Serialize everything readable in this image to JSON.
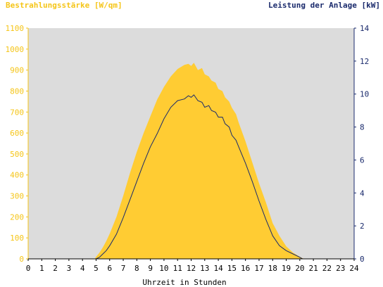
{
  "chart_data": {
    "type": "area",
    "left_axis_title": "Bestrahlungsstärke [W/qm]",
    "right_axis_title": "Leistung der Anlage [kW]",
    "xlabel": "Uhrzeit in Stunden",
    "x_ticks": [
      "0",
      "1",
      "2",
      "3",
      "4",
      "5",
      "6",
      "7",
      "8",
      "9",
      "10",
      "11",
      "12",
      "13",
      "14",
      "15",
      "16",
      "17",
      "18",
      "19",
      "20",
      "21",
      "22",
      "23",
      "24"
    ],
    "y_left_ticks": [
      "0",
      "100",
      "200",
      "300",
      "400",
      "500",
      "600",
      "700",
      "800",
      "900",
      "1000",
      "1100"
    ],
    "y_right_ticks": [
      "0",
      "2",
      "4",
      "6",
      "8",
      "10",
      "12",
      "14"
    ],
    "xlim": [
      0,
      24
    ],
    "ylim_left": [
      0,
      1100
    ],
    "ylim_right": [
      0,
      14
    ],
    "grid": false,
    "colors": {
      "plot_background": "#dcdcdc",
      "left_axis": "#f5c518",
      "right_axis": "#1a2a6c",
      "irradiance_fill": "#ffcc33"
    },
    "series": [
      {
        "axis": "left",
        "kind": "area",
        "x": [
          0,
          4.9,
          5.0,
          5.25,
          5.5,
          5.75,
          6,
          6.5,
          7,
          7.5,
          8,
          8.5,
          9,
          9.5,
          10,
          10.5,
          11,
          11.5,
          11.8,
          12,
          12.2,
          12.5,
          12.8,
          13,
          13.3,
          13.5,
          13.8,
          14,
          14.3,
          14.5,
          14.8,
          15,
          15.3,
          15.5,
          16,
          16.5,
          17,
          17.5,
          18,
          18.5,
          19,
          19.5,
          20,
          20.3,
          21,
          24
        ],
        "values": [
          0,
          0,
          10,
          30,
          55,
          85,
          120,
          200,
          300,
          410,
          510,
          600,
          680,
          760,
          820,
          870,
          905,
          925,
          930,
          920,
          935,
          900,
          910,
          880,
          870,
          850,
          840,
          810,
          800,
          770,
          750,
          720,
          690,
          650,
          560,
          460,
          360,
          270,
          170,
          110,
          60,
          30,
          10,
          0,
          0,
          0
        ]
      },
      {
        "axis": "right",
        "kind": "line",
        "x": [
          0,
          5.0,
          5.25,
          5.5,
          5.75,
          6,
          6.5,
          7,
          7.5,
          8,
          8.5,
          9,
          9.5,
          10,
          10.5,
          11,
          11.5,
          11.8,
          12,
          12.2,
          12.5,
          12.8,
          13,
          13.3,
          13.5,
          13.8,
          14,
          14.3,
          14.5,
          14.8,
          15,
          15.3,
          15.5,
          16,
          16.5,
          17,
          17.5,
          18,
          18.5,
          19,
          19.5,
          20,
          20.2,
          21,
          24
        ],
        "values": [
          0,
          0,
          0.1,
          0.3,
          0.5,
          0.8,
          1.5,
          2.5,
          3.6,
          4.7,
          5.8,
          6.8,
          7.6,
          8.5,
          9.2,
          9.6,
          9.7,
          9.9,
          9.8,
          9.95,
          9.6,
          9.5,
          9.2,
          9.3,
          9.0,
          8.9,
          8.6,
          8.6,
          8.2,
          8.0,
          7.5,
          7.2,
          6.8,
          5.8,
          4.7,
          3.5,
          2.4,
          1.4,
          0.8,
          0.5,
          0.3,
          0.1,
          0,
          0,
          0
        ]
      }
    ]
  }
}
